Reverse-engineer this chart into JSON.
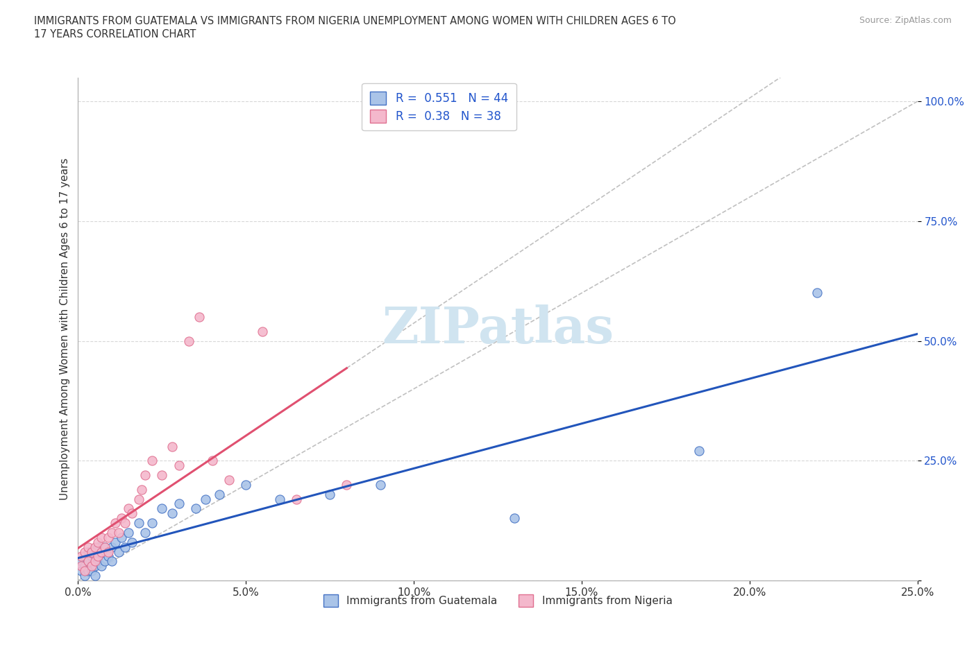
{
  "title_line1": "IMMIGRANTS FROM GUATEMALA VS IMMIGRANTS FROM NIGERIA UNEMPLOYMENT AMONG WOMEN WITH CHILDREN AGES 6 TO",
  "title_line2": "17 YEARS CORRELATION CHART",
  "source": "Source: ZipAtlas.com",
  "ylabel_label": "Unemployment Among Women with Children Ages 6 to 17 years",
  "xlim": [
    0.0,
    0.25
  ],
  "ylim": [
    0.0,
    1.05
  ],
  "xticks": [
    0.0,
    0.05,
    0.1,
    0.15,
    0.2,
    0.25
  ],
  "yticks": [
    0.0,
    0.25,
    0.5,
    0.75,
    1.0
  ],
  "xtick_labels": [
    "0.0%",
    "5.0%",
    "10.0%",
    "15.0%",
    "20.0%",
    "25.0%"
  ],
  "ytick_labels": [
    "",
    "25.0%",
    "50.0%",
    "75.0%",
    "100.0%"
  ],
  "guatemala_color": "#aac4e8",
  "guatemala_edge": "#4472C4",
  "nigeria_color": "#f4b8cc",
  "nigeria_edge": "#e07090",
  "trend_guatemala_color": "#2255bb",
  "trend_nigeria_color": "#e05070",
  "trend_diag_color": "#c0c0c0",
  "R_guatemala": 0.551,
  "N_guatemala": 44,
  "R_nigeria": 0.38,
  "N_nigeria": 38,
  "legend_R_color": "#2255cc",
  "legend_label_color": "#333333",
  "watermark_color": "#d0e4f0",
  "ytick_color": "#2255cc",
  "background_color": "#ffffff",
  "grid_color": "#d8d8d8",
  "guatemala_x": [
    0.001,
    0.001,
    0.002,
    0.002,
    0.002,
    0.003,
    0.003,
    0.003,
    0.004,
    0.004,
    0.005,
    0.005,
    0.005,
    0.006,
    0.006,
    0.007,
    0.007,
    0.008,
    0.008,
    0.009,
    0.01,
    0.01,
    0.011,
    0.012,
    0.013,
    0.014,
    0.015,
    0.016,
    0.018,
    0.02,
    0.022,
    0.025,
    0.028,
    0.03,
    0.035,
    0.038,
    0.042,
    0.05,
    0.06,
    0.075,
    0.09,
    0.13,
    0.185,
    0.22
  ],
  "guatemala_y": [
    0.02,
    0.04,
    0.01,
    0.03,
    0.05,
    0.02,
    0.04,
    0.06,
    0.02,
    0.05,
    0.01,
    0.03,
    0.05,
    0.04,
    0.07,
    0.03,
    0.06,
    0.04,
    0.07,
    0.05,
    0.04,
    0.07,
    0.08,
    0.06,
    0.09,
    0.07,
    0.1,
    0.08,
    0.12,
    0.1,
    0.12,
    0.15,
    0.14,
    0.16,
    0.15,
    0.17,
    0.18,
    0.2,
    0.17,
    0.18,
    0.2,
    0.13,
    0.27,
    0.6
  ],
  "nigeria_x": [
    0.001,
    0.001,
    0.002,
    0.002,
    0.003,
    0.003,
    0.004,
    0.004,
    0.005,
    0.005,
    0.006,
    0.006,
    0.007,
    0.007,
    0.008,
    0.009,
    0.009,
    0.01,
    0.011,
    0.012,
    0.013,
    0.014,
    0.015,
    0.016,
    0.018,
    0.019,
    0.02,
    0.022,
    0.025,
    0.028,
    0.03,
    0.033,
    0.036,
    0.04,
    0.045,
    0.055,
    0.065,
    0.08
  ],
  "nigeria_y": [
    0.03,
    0.05,
    0.02,
    0.06,
    0.04,
    0.07,
    0.03,
    0.06,
    0.04,
    0.07,
    0.05,
    0.08,
    0.06,
    0.09,
    0.07,
    0.06,
    0.09,
    0.1,
    0.12,
    0.1,
    0.13,
    0.12,
    0.15,
    0.14,
    0.17,
    0.19,
    0.22,
    0.25,
    0.22,
    0.28,
    0.24,
    0.5,
    0.55,
    0.25,
    0.21,
    0.52,
    0.17,
    0.2
  ],
  "bottom_legend_labels": [
    "Immigrants from Guatemala",
    "Immigrants from Nigeria"
  ]
}
